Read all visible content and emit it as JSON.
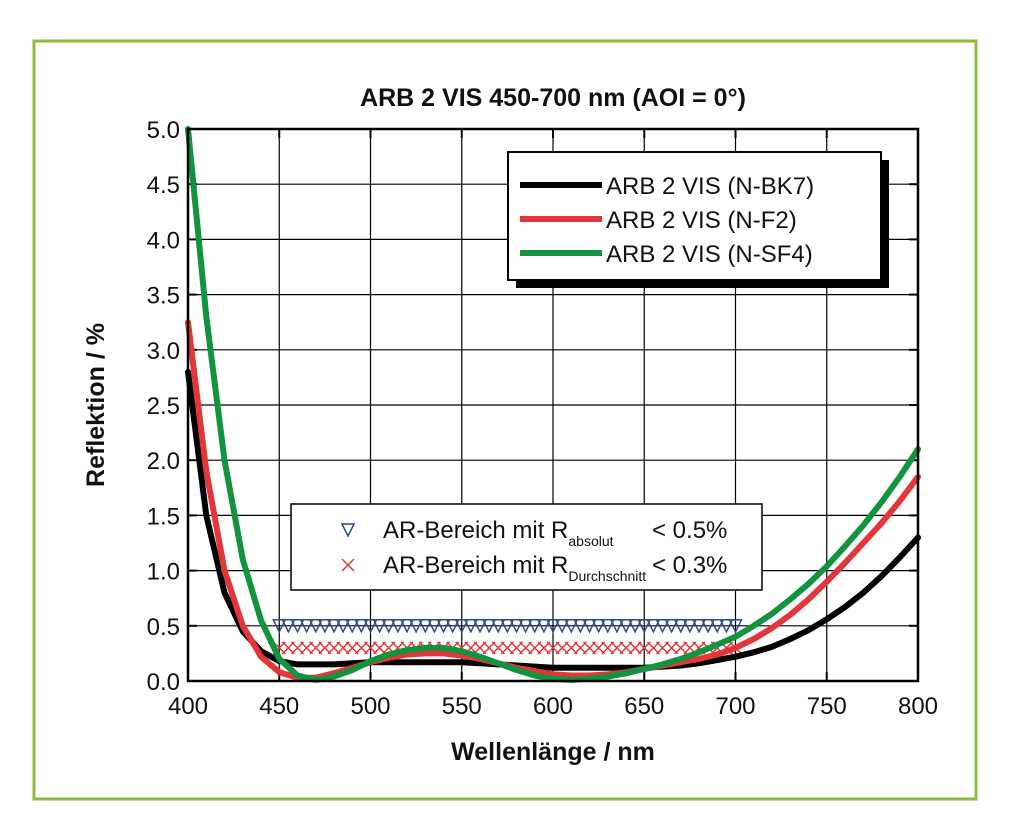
{
  "chart_data": {
    "type": "line",
    "title": "ARB 2 VIS 450-700 nm (AOI = 0°)",
    "x_label": "Wellenlänge / nm",
    "y_label": "Reflektion / %",
    "xlim": [
      400,
      800
    ],
    "ylim": [
      0,
      5
    ],
    "xticks": [
      400,
      450,
      500,
      550,
      600,
      650,
      700,
      750,
      800
    ],
    "yticks": [
      {
        "value": 0,
        "label": "0.0"
      },
      0.5,
      {
        "value": 1,
        "label": "1.0"
      },
      1.5,
      {
        "value": 2,
        "label": "2.0"
      },
      2.5,
      {
        "value": 3,
        "label": "3.0"
      },
      3.5,
      {
        "value": 4,
        "label": "4.0"
      },
      4.5,
      {
        "value": 5,
        "label": "5.0"
      }
    ],
    "grid": true,
    "legend": "upper right",
    "x": [
      400,
      410,
      420,
      430,
      440,
      450,
      460,
      470,
      480,
      490,
      500,
      510,
      520,
      530,
      540,
      550,
      560,
      570,
      580,
      590,
      600,
      610,
      620,
      630,
      640,
      650,
      660,
      670,
      680,
      690,
      700,
      710,
      720,
      730,
      740,
      750,
      760,
      770,
      780,
      790,
      800
    ],
    "series": [
      {
        "name": "ARB 2 VIS (N-BK7)",
        "color": "#000000",
        "values": [
          2.8,
          1.5,
          0.8,
          0.45,
          0.27,
          0.18,
          0.15,
          0.15,
          0.15,
          0.16,
          0.17,
          0.17,
          0.17,
          0.17,
          0.17,
          0.17,
          0.16,
          0.15,
          0.14,
          0.13,
          0.12,
          0.12,
          0.12,
          0.12,
          0.12,
          0.12,
          0.13,
          0.14,
          0.16,
          0.19,
          0.22,
          0.26,
          0.31,
          0.38,
          0.46,
          0.56,
          0.67,
          0.8,
          0.95,
          1.12,
          1.3
        ]
      },
      {
        "name": "ARB 2 VIS (N-F2)",
        "color": "#e2363a",
        "values": [
          3.25,
          1.9,
          1.0,
          0.5,
          0.22,
          0.08,
          0.03,
          0.03,
          0.07,
          0.12,
          0.17,
          0.21,
          0.24,
          0.25,
          0.25,
          0.23,
          0.2,
          0.16,
          0.12,
          0.09,
          0.06,
          0.05,
          0.05,
          0.06,
          0.08,
          0.11,
          0.14,
          0.17,
          0.2,
          0.24,
          0.3,
          0.38,
          0.48,
          0.6,
          0.74,
          0.9,
          1.07,
          1.25,
          1.43,
          1.63,
          1.85
        ]
      },
      {
        "name": "ARB 2 VIS (N-SF4)",
        "color": "#12933e",
        "values": [
          5.0,
          3.3,
          2.0,
          1.1,
          0.55,
          0.2,
          0.05,
          0.01,
          0.04,
          0.1,
          0.18,
          0.24,
          0.28,
          0.3,
          0.3,
          0.27,
          0.22,
          0.16,
          0.1,
          0.05,
          0.02,
          0.01,
          0.02,
          0.04,
          0.07,
          0.11,
          0.15,
          0.2,
          0.26,
          0.33,
          0.4,
          0.5,
          0.61,
          0.74,
          0.88,
          1.04,
          1.22,
          1.41,
          1.62,
          1.85,
          2.1
        ]
      }
    ],
    "annotation_series": [
      {
        "type": "scatter",
        "marker": "triangle-down",
        "color": "#2d4a8a",
        "name": "AR-Bereich mit R",
        "subscript": "absolut",
        "limit": "< 0.5%",
        "x": [
          450,
          455,
          460,
          465,
          470,
          475,
          480,
          485,
          490,
          495,
          500,
          505,
          510,
          515,
          520,
          525,
          530,
          535,
          540,
          545,
          550,
          555,
          560,
          565,
          570,
          575,
          580,
          585,
          590,
          595,
          600,
          605,
          610,
          615,
          620,
          625,
          630,
          635,
          640,
          645,
          650,
          655,
          660,
          665,
          670,
          675,
          680,
          685,
          690,
          695,
          700
        ],
        "values": [
          0.5,
          0.5,
          0.5,
          0.5,
          0.5,
          0.5,
          0.5,
          0.5,
          0.5,
          0.5,
          0.5,
          0.5,
          0.5,
          0.5,
          0.5,
          0.5,
          0.5,
          0.5,
          0.5,
          0.5,
          0.5,
          0.5,
          0.5,
          0.5,
          0.5,
          0.5,
          0.5,
          0.5,
          0.5,
          0.5,
          0.5,
          0.5,
          0.5,
          0.5,
          0.5,
          0.5,
          0.5,
          0.5,
          0.5,
          0.5,
          0.5,
          0.5,
          0.5,
          0.5,
          0.5,
          0.5,
          0.5,
          0.5,
          0.5,
          0.5,
          0.5
        ]
      },
      {
        "type": "scatter",
        "marker": "x",
        "color": "#e2363a",
        "name": "AR-Bereich mit R",
        "subscript": "Durchschnitt",
        "limit": "< 0.3%",
        "x": [
          450,
          455,
          460,
          465,
          470,
          475,
          480,
          485,
          490,
          495,
          500,
          505,
          510,
          515,
          520,
          525,
          530,
          535,
          540,
          545,
          550,
          555,
          560,
          565,
          570,
          575,
          580,
          585,
          590,
          595,
          600,
          605,
          610,
          615,
          620,
          625,
          630,
          635,
          640,
          645,
          650,
          655,
          660,
          665,
          670,
          675,
          680,
          685,
          690,
          695,
          700
        ],
        "values": [
          0.3,
          0.3,
          0.3,
          0.3,
          0.3,
          0.3,
          0.3,
          0.3,
          0.3,
          0.3,
          0.3,
          0.3,
          0.3,
          0.3,
          0.3,
          0.3,
          0.3,
          0.3,
          0.3,
          0.3,
          0.3,
          0.3,
          0.3,
          0.3,
          0.3,
          0.3,
          0.3,
          0.3,
          0.3,
          0.3,
          0.3,
          0.3,
          0.3,
          0.3,
          0.3,
          0.3,
          0.3,
          0.3,
          0.3,
          0.3,
          0.3,
          0.3,
          0.3,
          0.3,
          0.3,
          0.3,
          0.3,
          0.3,
          0.3,
          0.3,
          0.3
        ]
      }
    ]
  }
}
